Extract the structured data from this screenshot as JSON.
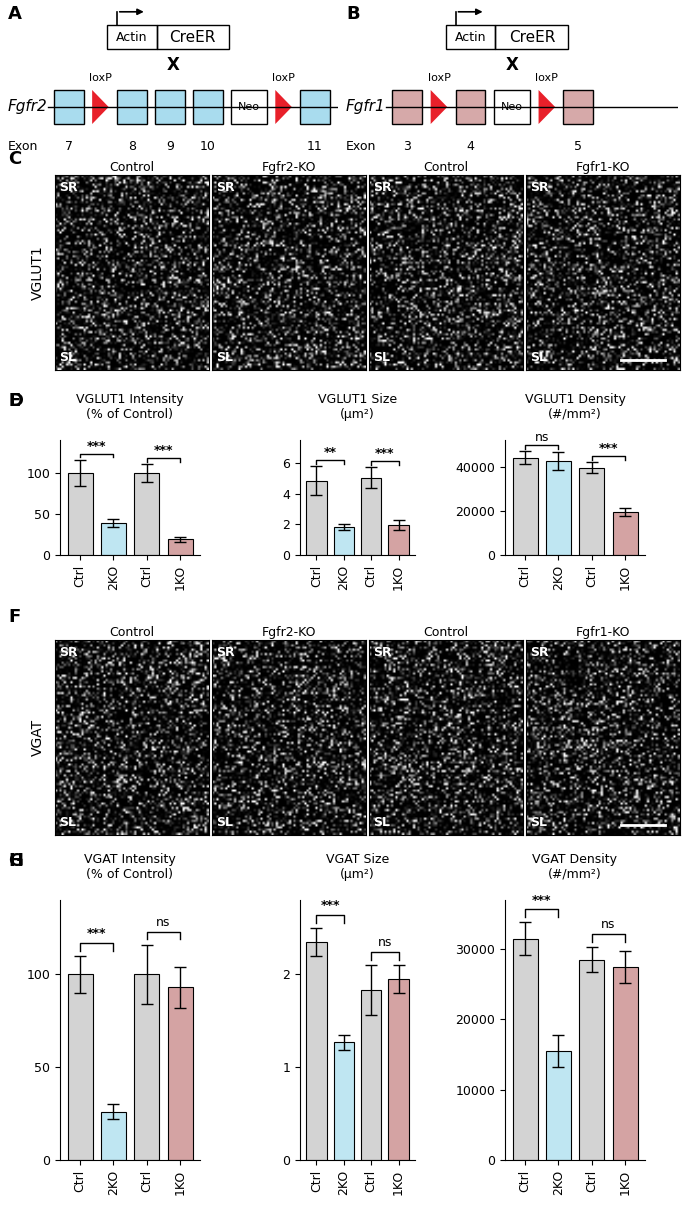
{
  "diagrams": [
    {
      "panel": "A",
      "promoter": "Actin",
      "transgene": "CreER",
      "cross": "X",
      "gene": "Fgfr2",
      "exon_word": "Exon",
      "color": "#a9dcee",
      "elements": [
        {
          "kind": "exon",
          "label": "7"
        },
        {
          "kind": "loxP",
          "label": "loxP"
        },
        {
          "kind": "exon",
          "label": "8"
        },
        {
          "kind": "exon",
          "label": "9"
        },
        {
          "kind": "exon",
          "label": "10"
        },
        {
          "kind": "neo",
          "label": "Neo"
        },
        {
          "kind": "loxP",
          "label": "loxP"
        },
        {
          "kind": "exon",
          "label": "11"
        }
      ]
    },
    {
      "panel": "B",
      "promoter": "Actin",
      "transgene": "CreER",
      "cross": "X",
      "gene": "Fgfr1",
      "exon_word": "Exon",
      "color": "#d6a9a9",
      "elements": [
        {
          "kind": "exon",
          "label": "3"
        },
        {
          "kind": "loxP",
          "label": "loxP"
        },
        {
          "kind": "exon",
          "label": "4"
        },
        {
          "kind": "neo",
          "label": "Neo"
        },
        {
          "kind": "loxP",
          "label": "loxP"
        },
        {
          "kind": "exon",
          "label": "5"
        }
      ]
    }
  ],
  "images": [
    {
      "panel": "C",
      "marker": "VGLUT1",
      "columns": [
        "Control",
        "Fgfr2-KO",
        "Control",
        "Fgfr1-KO"
      ],
      "top_label": "SR",
      "bottom_label": "SL"
    },
    {
      "panel": "F",
      "marker": "VGAT",
      "columns": [
        "Control",
        "Fgfr2-KO",
        "Control",
        "Fgfr1-KO"
      ],
      "top_label": "SR",
      "bottom_label": "SL"
    }
  ],
  "chart_data": [
    {
      "panel": "D",
      "type": "bar",
      "title": "VGLUT1 Intensity\n(% of Control)",
      "categories": [
        "Ctrl",
        "2KO",
        "Ctrl",
        "1KO"
      ],
      "values": [
        100,
        39,
        100,
        19
      ],
      "errors": [
        16,
        5,
        11,
        3
      ],
      "colors": [
        "#d3d3d3",
        "#bfe6f2",
        "#d3d3d3",
        "#d4a3a3"
      ],
      "ylim": [
        0,
        140
      ],
      "yticks": [
        0,
        50,
        100
      ],
      "significance": [
        {
          "between": [
            0,
            1
          ],
          "label": "***"
        },
        {
          "between": [
            2,
            3
          ],
          "label": "***"
        }
      ]
    },
    {
      "panel": "E",
      "type": "bar",
      "title": "VGLUT1 Size\n(µm²)",
      "categories": [
        "Ctrl",
        "2KO",
        "Ctrl",
        "1KO"
      ],
      "values": [
        4.85,
        1.85,
        5.05,
        1.95
      ],
      "errors": [
        0.95,
        0.2,
        0.7,
        0.3
      ],
      "colors": [
        "#d3d3d3",
        "#bfe6f2",
        "#d3d3d3",
        "#d4a3a3"
      ],
      "ylim": [
        0,
        7.5
      ],
      "yticks": [
        0,
        2,
        4,
        6
      ],
      "significance": [
        {
          "between": [
            0,
            1
          ],
          "label": "**"
        },
        {
          "between": [
            2,
            3
          ],
          "label": "***"
        }
      ]
    },
    {
      "panel": "E",
      "type": "bar",
      "title": "VGLUT1 Density\n(#/mm²)",
      "categories": [
        "Ctrl",
        "2KO",
        "Ctrl",
        "1KO"
      ],
      "values": [
        44000,
        42500,
        39500,
        19500
      ],
      "errors": [
        3000,
        4000,
        2500,
        1800
      ],
      "colors": [
        "#d3d3d3",
        "#bfe6f2",
        "#d3d3d3",
        "#d4a3a3"
      ],
      "ylim": [
        0,
        52000
      ],
      "yticks": [
        0,
        20000,
        40000
      ],
      "significance": [
        {
          "between": [
            0,
            1
          ],
          "label": "ns"
        },
        {
          "between": [
            2,
            3
          ],
          "label": "***"
        }
      ]
    },
    {
      "panel": "G",
      "type": "bar",
      "title": "VGAT Intensity\n(% of Control)",
      "categories": [
        "Ctrl",
        "2KO",
        "Ctrl",
        "1KO"
      ],
      "values": [
        100,
        26,
        100,
        93
      ],
      "errors": [
        10,
        4,
        16,
        11
      ],
      "colors": [
        "#d3d3d3",
        "#bfe6f2",
        "#d3d3d3",
        "#d4a3a3"
      ],
      "ylim": [
        0,
        140
      ],
      "yticks": [
        0,
        50,
        100
      ],
      "significance": [
        {
          "between": [
            0,
            1
          ],
          "label": "***"
        },
        {
          "between": [
            2,
            3
          ],
          "label": "ns"
        }
      ]
    },
    {
      "panel": "H",
      "type": "bar",
      "title": "VGAT Size\n(µm²)",
      "categories": [
        "Ctrl",
        "2KO",
        "Ctrl",
        "1KO"
      ],
      "values": [
        2.35,
        1.27,
        1.83,
        1.95
      ],
      "errors": [
        0.15,
        0.08,
        0.27,
        0.15
      ],
      "colors": [
        "#d3d3d3",
        "#bfe6f2",
        "#d3d3d3",
        "#d4a3a3"
      ],
      "ylim": [
        0,
        2.8
      ],
      "yticks": [
        0,
        1,
        2
      ],
      "significance": [
        {
          "between": [
            0,
            1
          ],
          "label": "***"
        },
        {
          "between": [
            2,
            3
          ],
          "label": "ns"
        }
      ]
    },
    {
      "panel": "H",
      "type": "bar",
      "title": "VGAT Density\n(#/mm²)",
      "categories": [
        "Ctrl",
        "2KO",
        "Ctrl",
        "1KO"
      ],
      "values": [
        31500,
        15500,
        28500,
        27500
      ],
      "errors": [
        2300,
        2300,
        1800,
        2300
      ],
      "colors": [
        "#d3d3d3",
        "#bfe6f2",
        "#d3d3d3",
        "#d4a3a3"
      ],
      "ylim": [
        0,
        37000
      ],
      "yticks": [
        0,
        10000,
        20000,
        30000
      ],
      "significance": [
        {
          "between": [
            0,
            1
          ],
          "label": "***"
        },
        {
          "between": [
            2,
            3
          ],
          "label": "ns"
        }
      ]
    }
  ]
}
